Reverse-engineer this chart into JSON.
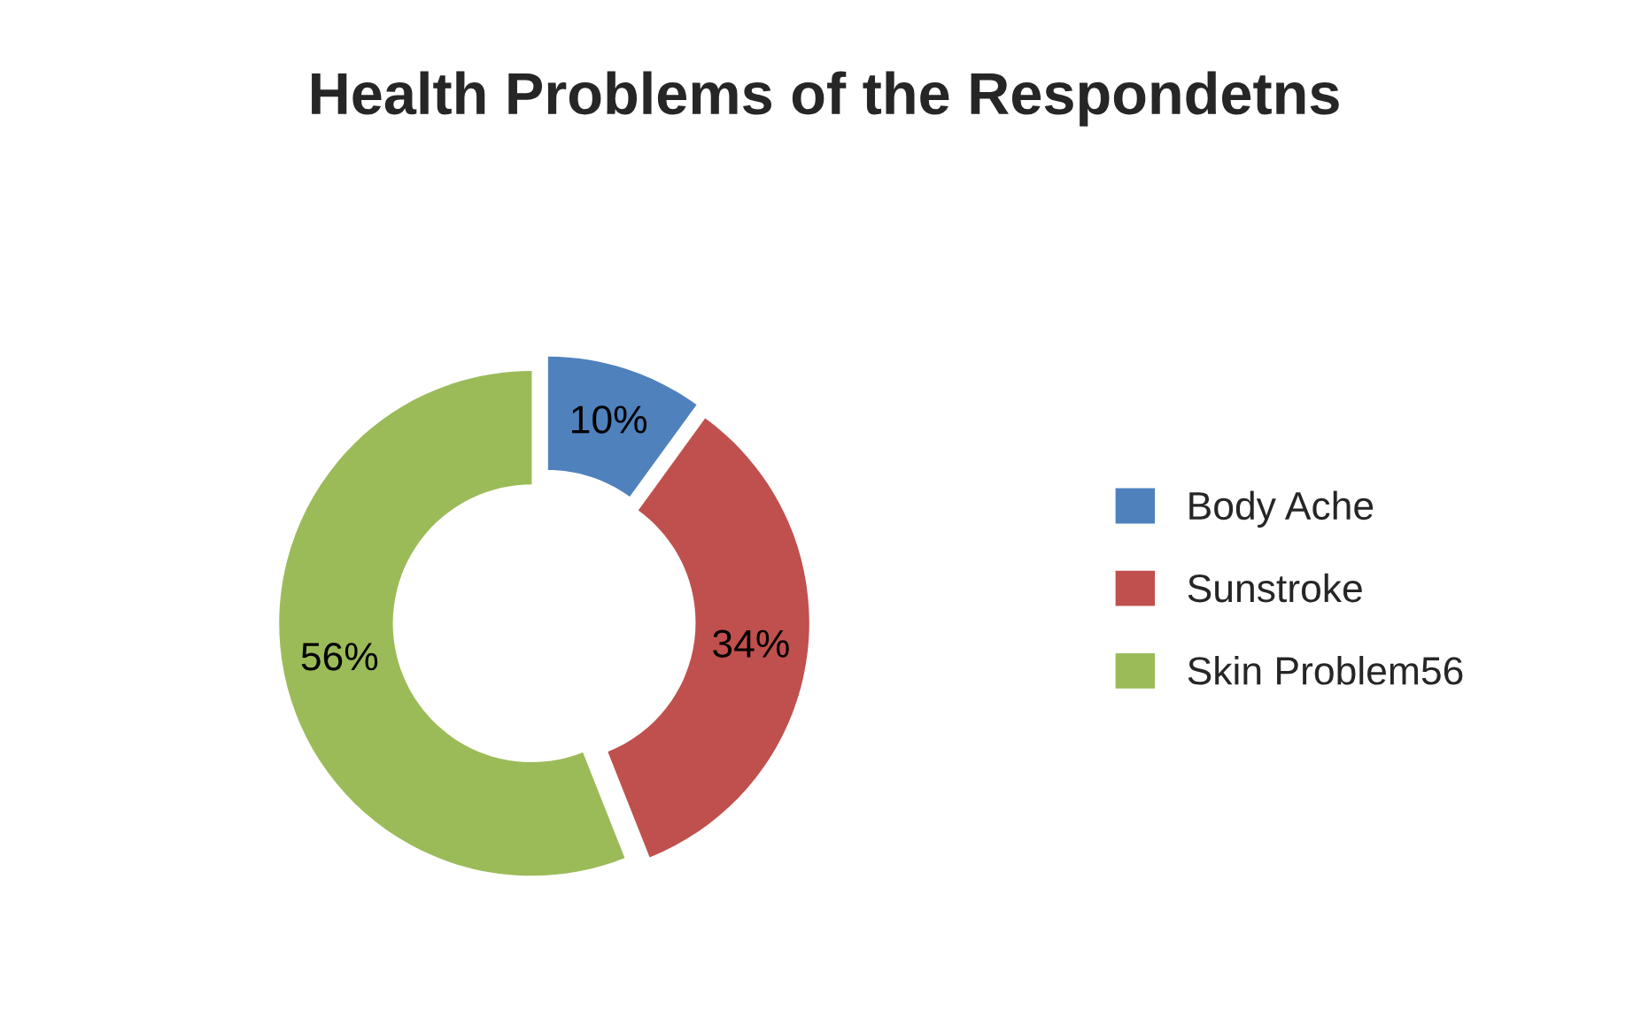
{
  "chart_data": {
    "type": "donut",
    "title": "Health Problems of the Respondetns",
    "categories": [
      "Body Ache",
      "Sunstroke",
      "Skin Problem56"
    ],
    "values": [
      10,
      34,
      56
    ],
    "colors": [
      "#4f81bd",
      "#c0504d",
      "#9bbb59"
    ],
    "value_labels": [
      "10%",
      "34%",
      "56%"
    ],
    "legend": "right"
  }
}
